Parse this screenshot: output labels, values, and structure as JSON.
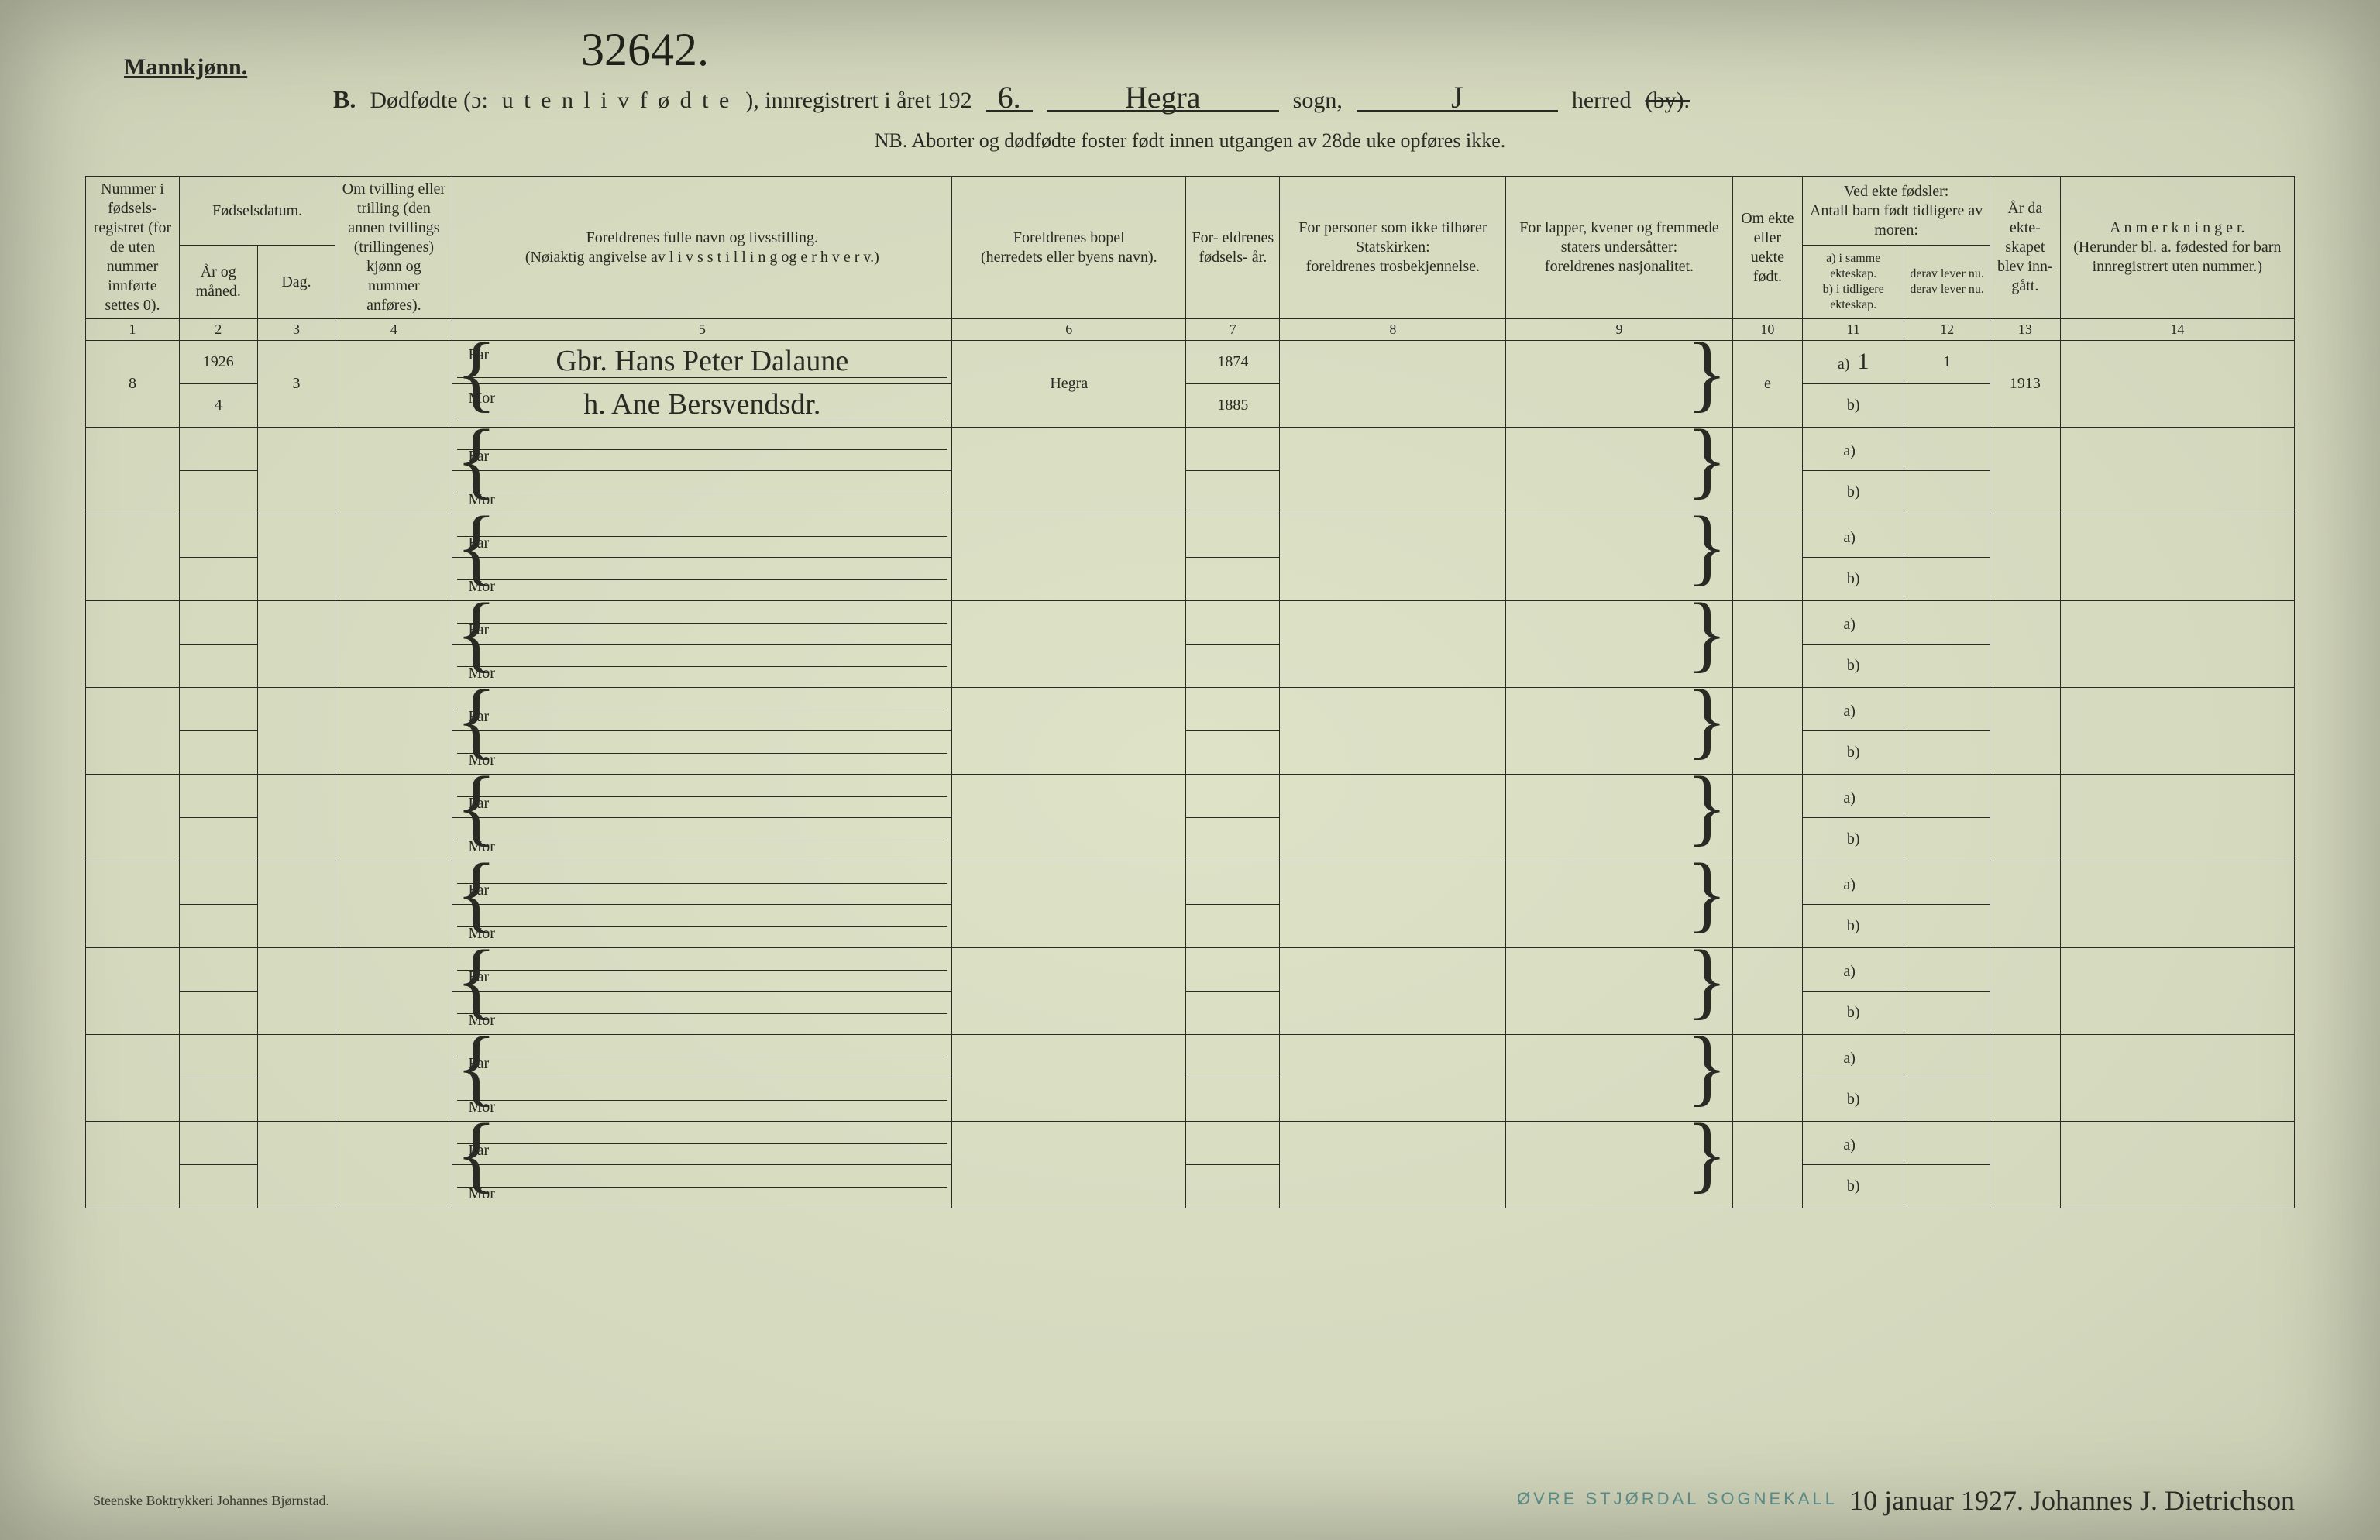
{
  "header": {
    "gender": "Mannkjønn.",
    "archive_number": "32642.",
    "label_b": "B.",
    "title_1": "Dødfødte (ɔ:",
    "title_2": "u t e n  l i v  f ø d t e",
    "title_3": "), innregistrert i året 192",
    "year_digit": "6.",
    "parish_value": "Hegra",
    "sogn_label": "sogn,",
    "herred_value": "J",
    "herred_label": "herred",
    "by_struck": "(by).",
    "note": "NB.  Aborter og dødfødte foster født innen utgangen av 28de uke opføres ikke."
  },
  "columns": {
    "c1": "Nummer i fødsels- registret (for de uten nummer innførte settes 0).",
    "c2_group": "Fødselsdatum.",
    "c2": "År og måned.",
    "c3": "Dag.",
    "c4": "Om tvilling eller trilling (den annen tvillings (trillingenes) kjønn og nummer anføres).",
    "c5": "Foreldrenes fulle navn og livsstilling.\n(Nøiaktig angivelse av  l i v s s t i l l i n g  og  e r h v e r v.)",
    "c6": "Foreldrenes bopel\n(herredets eller byens navn).",
    "c7": "For- eldrenes fødsels- år.",
    "c8": "For personer som ikke tilhører Statskirken:\nforeldrenes trosbekjennelse.",
    "c9": "For lapper, kvener og fremmede staters undersåtter:\nforeldrenes nasjonalitet.",
    "c10": "Om ekte eller uekte født.",
    "c11_group": "Ved ekte fødsler:\nAntall barn født tidligere av moren:",
    "c11": "a) i samme ekteskap.\nb) i tidligere ekteskap.",
    "c12": "derav lever nu.\nderav lever nu.",
    "c13": "År da ekte- skapet blev inn- gått.",
    "c14": "A n m e r k n i n g e r.\n(Herunder bl. a. fødested for barn innregistrert uten nummer.)"
  },
  "colnums": [
    "1",
    "2",
    "3",
    "4",
    "5",
    "6",
    "7",
    "8",
    "9",
    "10",
    "11",
    "12",
    "13",
    "14"
  ],
  "role_labels": {
    "far": "Far",
    "mor": "Mor",
    "a": "a)",
    "b": "b)"
  },
  "entry": {
    "number": "8",
    "year": "1926",
    "month": "4",
    "day": "3",
    "father": "Gbr. Hans Peter Dalaune",
    "mother": "h. Ane Bersvendsdr.",
    "bopel": "Hegra",
    "father_birth": "1874",
    "mother_birth": "1885",
    "ekte": "e",
    "c11a": "1",
    "c12a": "1",
    "c13": "1913"
  },
  "footer": {
    "printer": "Steenske Boktrykkeri Johannes Bjørnstad.",
    "stamp": "ØVRE STJØRDAL SOGNEKALL",
    "signature": "10 januar 1927.  Johannes J. Dietrichson"
  },
  "style": {
    "page_bg": "#d8dcc2",
    "ink": "#2a2a24",
    "stamp_color": "#5a8a86"
  }
}
